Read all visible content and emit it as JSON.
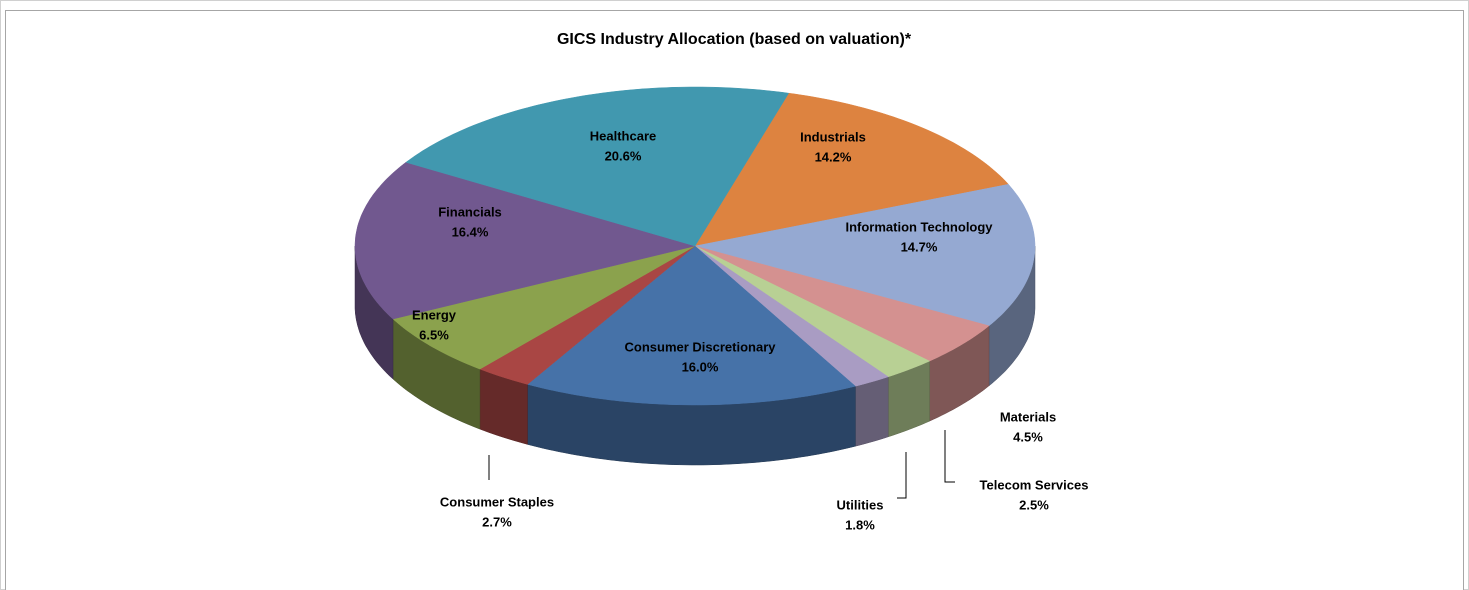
{
  "chart_data": {
    "type": "pie",
    "title": "GICS Industry Allocation (based on valuation)*",
    "categories": [
      "Industrials",
      "Information Technology",
      "Materials",
      "Telecom Services",
      "Utilities",
      "Consumer Discretionary",
      "Consumer Staples",
      "Energy",
      "Financials",
      "Healthcare"
    ],
    "values": [
      14.2,
      14.7,
      4.5,
      2.5,
      1.8,
      16.0,
      2.7,
      6.5,
      16.4,
      20.6
    ],
    "value_labels": [
      "14.2%",
      "14.7%",
      "4.5%",
      "2.5%",
      "1.8%",
      "16.0%",
      "2.7%",
      "6.5%",
      "16.4%",
      "20.6%"
    ],
    "colors": [
      "#dd8340",
      "#95a9d2",
      "#d49190",
      "#b8d094",
      "#a99cc3",
      "#4672a8",
      "#a94644",
      "#8ba24d",
      "#71588f",
      "#4198af"
    ]
  }
}
